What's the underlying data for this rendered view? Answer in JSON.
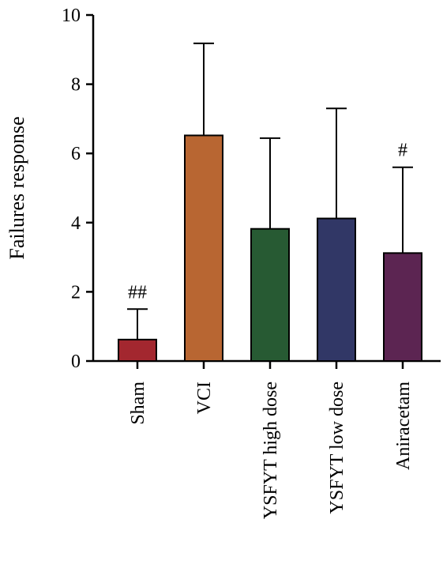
{
  "chart_data": {
    "type": "bar",
    "title": "",
    "xlabel": "",
    "ylabel": "Failures response",
    "ylim": [
      0,
      10
    ],
    "yticks": [
      0,
      2,
      4,
      6,
      8,
      10
    ],
    "grid": false,
    "categories": [
      "Sham",
      "VCI",
      "YSFYT high dose",
      "YSFYT low dose",
      "Aniracetam"
    ],
    "values": [
      0.62,
      6.52,
      3.82,
      4.12,
      3.12
    ],
    "errors": [
      0.88,
      2.66,
      2.62,
      3.18,
      2.48
    ],
    "annotations": [
      "##",
      "",
      "",
      "",
      "#"
    ],
    "colors": [
      "#a3272f",
      "#b86632",
      "#275a33",
      "#313766",
      "#5c2552"
    ]
  }
}
